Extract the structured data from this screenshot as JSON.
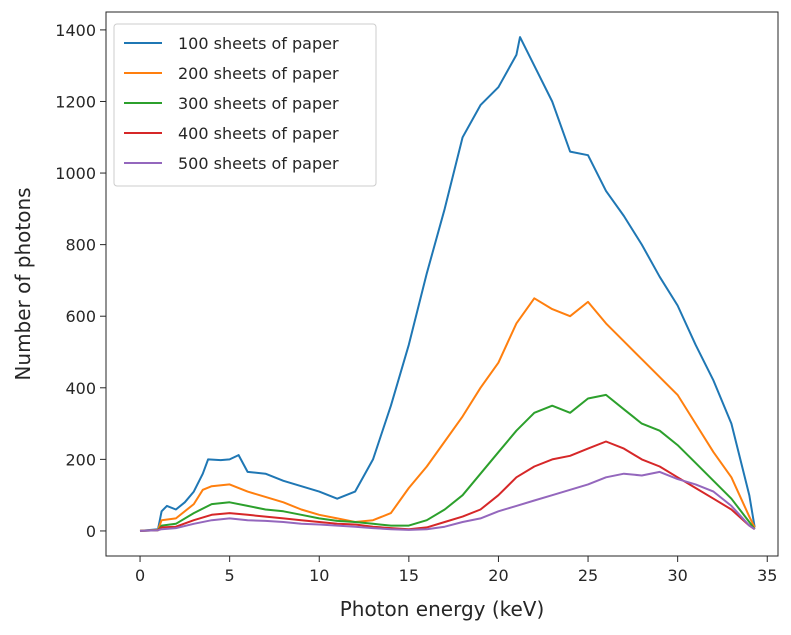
{
  "chart_data": {
    "type": "line",
    "title": "",
    "xlabel": "Photon energy (keV)",
    "ylabel": "Number of photons",
    "xlim": [
      -1.9,
      35.6
    ],
    "ylim": [
      -70,
      1450
    ],
    "xticks": [
      0,
      5,
      10,
      15,
      20,
      25,
      30,
      35
    ],
    "yticks": [
      0,
      200,
      400,
      600,
      800,
      1000,
      1200,
      1400
    ],
    "grid": false,
    "legend_position": "top-left",
    "series": [
      {
        "name": "100 sheets of paper",
        "color": "#1f77b4",
        "points": [
          [
            0,
            0
          ],
          [
            1,
            5
          ],
          [
            1.2,
            55
          ],
          [
            1.5,
            70
          ],
          [
            2,
            60
          ],
          [
            2.5,
            80
          ],
          [
            3,
            110
          ],
          [
            3.5,
            160
          ],
          [
            3.8,
            200
          ],
          [
            4.5,
            198
          ],
          [
            5,
            200
          ],
          [
            5.5,
            212
          ],
          [
            6,
            165
          ],
          [
            7,
            160
          ],
          [
            8,
            140
          ],
          [
            9,
            125
          ],
          [
            10,
            110
          ],
          [
            11,
            90
          ],
          [
            12,
            110
          ],
          [
            13,
            200
          ],
          [
            14,
            350
          ],
          [
            15,
            520
          ],
          [
            16,
            720
          ],
          [
            17,
            900
          ],
          [
            18,
            1100
          ],
          [
            19,
            1190
          ],
          [
            20,
            1240
          ],
          [
            21,
            1330
          ],
          [
            21.2,
            1380
          ],
          [
            22,
            1300
          ],
          [
            23,
            1200
          ],
          [
            24,
            1060
          ],
          [
            25,
            1050
          ],
          [
            26,
            950
          ],
          [
            27,
            880
          ],
          [
            28,
            800
          ],
          [
            29,
            710
          ],
          [
            30,
            630
          ],
          [
            31,
            520
          ],
          [
            32,
            420
          ],
          [
            33,
            300
          ],
          [
            34,
            100
          ],
          [
            34.3,
            10
          ]
        ]
      },
      {
        "name": "200 sheets of paper",
        "color": "#ff7f0e",
        "points": [
          [
            0,
            0
          ],
          [
            1,
            3
          ],
          [
            1.2,
            30
          ],
          [
            2,
            35
          ],
          [
            3,
            75
          ],
          [
            3.5,
            115
          ],
          [
            4,
            125
          ],
          [
            5,
            130
          ],
          [
            6,
            110
          ],
          [
            7,
            95
          ],
          [
            8,
            80
          ],
          [
            9,
            60
          ],
          [
            10,
            45
          ],
          [
            11,
            35
          ],
          [
            12,
            25
          ],
          [
            13,
            30
          ],
          [
            14,
            50
          ],
          [
            15,
            120
          ],
          [
            16,
            180
          ],
          [
            17,
            250
          ],
          [
            18,
            320
          ],
          [
            19,
            400
          ],
          [
            20,
            470
          ],
          [
            21,
            580
          ],
          [
            22,
            650
          ],
          [
            23,
            620
          ],
          [
            24,
            600
          ],
          [
            25,
            640
          ],
          [
            26,
            580
          ],
          [
            27,
            530
          ],
          [
            28,
            480
          ],
          [
            29,
            430
          ],
          [
            30,
            380
          ],
          [
            31,
            300
          ],
          [
            32,
            220
          ],
          [
            33,
            150
          ],
          [
            34,
            40
          ],
          [
            34.3,
            10
          ]
        ]
      },
      {
        "name": "300 sheets of paper",
        "color": "#2ca02c",
        "points": [
          [
            0,
            0
          ],
          [
            1,
            2
          ],
          [
            1.2,
            15
          ],
          [
            2,
            20
          ],
          [
            3,
            50
          ],
          [
            4,
            75
          ],
          [
            5,
            80
          ],
          [
            6,
            70
          ],
          [
            7,
            60
          ],
          [
            8,
            55
          ],
          [
            9,
            45
          ],
          [
            10,
            35
          ],
          [
            11,
            28
          ],
          [
            12,
            25
          ],
          [
            13,
            20
          ],
          [
            14,
            15
          ],
          [
            15,
            15
          ],
          [
            16,
            30
          ],
          [
            17,
            60
          ],
          [
            18,
            100
          ],
          [
            19,
            160
          ],
          [
            20,
            220
          ],
          [
            21,
            280
          ],
          [
            22,
            330
          ],
          [
            23,
            350
          ],
          [
            24,
            330
          ],
          [
            25,
            370
          ],
          [
            26,
            380
          ],
          [
            27,
            340
          ],
          [
            28,
            300
          ],
          [
            29,
            280
          ],
          [
            30,
            240
          ],
          [
            31,
            190
          ],
          [
            32,
            140
          ],
          [
            33,
            90
          ],
          [
            34,
            25
          ],
          [
            34.3,
            5
          ]
        ]
      },
      {
        "name": "400 sheets of paper",
        "color": "#d62728",
        "points": [
          [
            0,
            0
          ],
          [
            1,
            2
          ],
          [
            1.2,
            10
          ],
          [
            2,
            12
          ],
          [
            3,
            30
          ],
          [
            4,
            45
          ],
          [
            5,
            50
          ],
          [
            6,
            45
          ],
          [
            7,
            40
          ],
          [
            8,
            35
          ],
          [
            9,
            30
          ],
          [
            10,
            25
          ],
          [
            11,
            20
          ],
          [
            12,
            18
          ],
          [
            13,
            12
          ],
          [
            14,
            8
          ],
          [
            15,
            5
          ],
          [
            16,
            10
          ],
          [
            17,
            25
          ],
          [
            18,
            40
          ],
          [
            19,
            60
          ],
          [
            20,
            100
          ],
          [
            21,
            150
          ],
          [
            22,
            180
          ],
          [
            23,
            200
          ],
          [
            24,
            210
          ],
          [
            25,
            230
          ],
          [
            26,
            250
          ],
          [
            27,
            230
          ],
          [
            28,
            200
          ],
          [
            29,
            180
          ],
          [
            30,
            150
          ],
          [
            31,
            120
          ],
          [
            32,
            90
          ],
          [
            33,
            60
          ],
          [
            34,
            15
          ],
          [
            34.3,
            5
          ]
        ]
      },
      {
        "name": "500 sheets of paper",
        "color": "#9467bd",
        "points": [
          [
            0,
            0
          ],
          [
            1,
            2
          ],
          [
            1.2,
            5
          ],
          [
            2,
            8
          ],
          [
            3,
            20
          ],
          [
            4,
            30
          ],
          [
            5,
            35
          ],
          [
            6,
            30
          ],
          [
            7,
            28
          ],
          [
            8,
            25
          ],
          [
            9,
            20
          ],
          [
            10,
            18
          ],
          [
            11,
            15
          ],
          [
            12,
            12
          ],
          [
            13,
            8
          ],
          [
            14,
            5
          ],
          [
            15,
            3
          ],
          [
            16,
            5
          ],
          [
            17,
            12
          ],
          [
            18,
            25
          ],
          [
            19,
            35
          ],
          [
            20,
            55
          ],
          [
            21,
            70
          ],
          [
            22,
            85
          ],
          [
            23,
            100
          ],
          [
            24,
            115
          ],
          [
            25,
            130
          ],
          [
            26,
            150
          ],
          [
            27,
            160
          ],
          [
            28,
            155
          ],
          [
            29,
            165
          ],
          [
            30,
            145
          ],
          [
            31,
            130
          ],
          [
            32,
            110
          ],
          [
            33,
            70
          ],
          [
            34,
            15
          ],
          [
            34.3,
            5
          ]
        ]
      }
    ]
  }
}
